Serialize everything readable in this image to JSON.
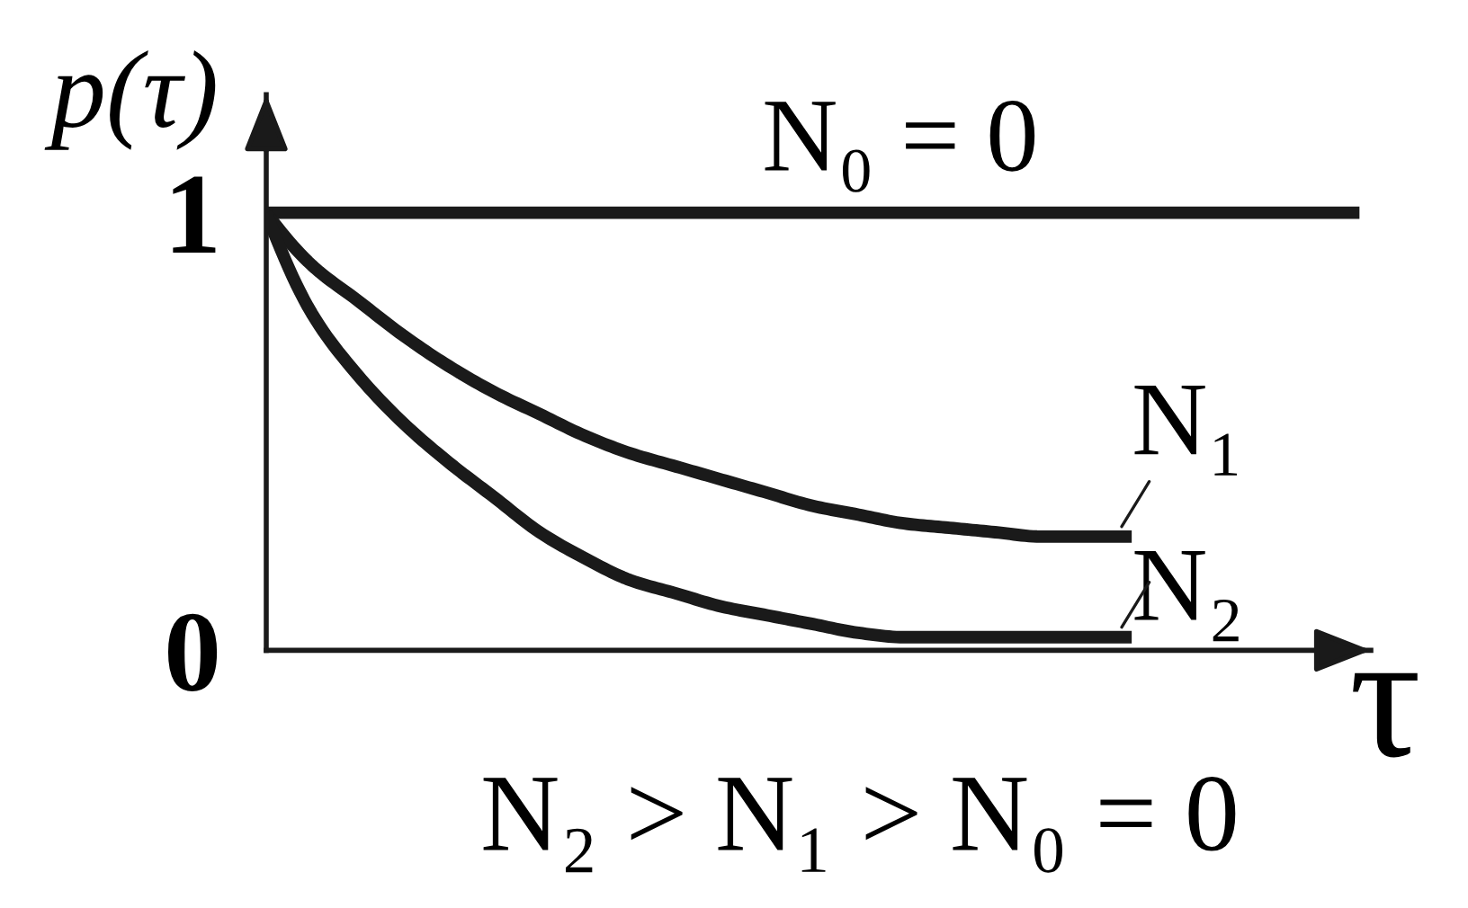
{
  "chart_data": {
    "type": "line",
    "xlabel": "τ",
    "ylabel": "p(τ)",
    "categories": [
      null,
      null,
      null,
      null,
      null,
      null,
      null,
      null,
      null,
      null,
      null,
      null,
      null,
      null,
      null,
      null,
      null,
      null,
      null,
      null,
      null,
      null,
      null,
      null,
      null
    ],
    "series": [
      {
        "name": "N₀ = 0",
        "color": "#1a1a1a",
        "values": [
          1,
          1,
          1,
          1,
          1,
          1,
          1,
          1,
          1,
          1,
          1,
          1,
          1,
          1,
          1,
          1,
          1,
          1,
          1,
          1,
          1,
          1,
          1,
          1,
          1
        ]
      },
      {
        "name": "N₁",
        "color": "#1a1a1a",
        "values": [
          1,
          0.88,
          0.8,
          0.72,
          0.65,
          0.59,
          0.54,
          0.49,
          0.45,
          0.42,
          0.39,
          0.36,
          0.33,
          0.31,
          0.29,
          0.28,
          0.27,
          0.26,
          0.26,
          0.26,
          null,
          null,
          null,
          null,
          null
        ]
      },
      {
        "name": "N₂",
        "color": "#1a1a1a",
        "values": [
          1,
          0.77,
          0.63,
          0.52,
          0.43,
          0.35,
          0.27,
          0.21,
          0.16,
          0.13,
          0.1,
          0.08,
          0.06,
          0.04,
          0.03,
          0.03,
          0.03,
          0.03,
          0.03,
          0.03,
          null,
          null,
          null,
          null,
          null
        ]
      }
    ],
    "ylim": [
      0,
      1.27
    ],
    "yticks": [
      0,
      1
    ],
    "line_style": "solid",
    "annotations": [
      "N₂ > N₁ > N₀ = 0"
    ]
  }
}
